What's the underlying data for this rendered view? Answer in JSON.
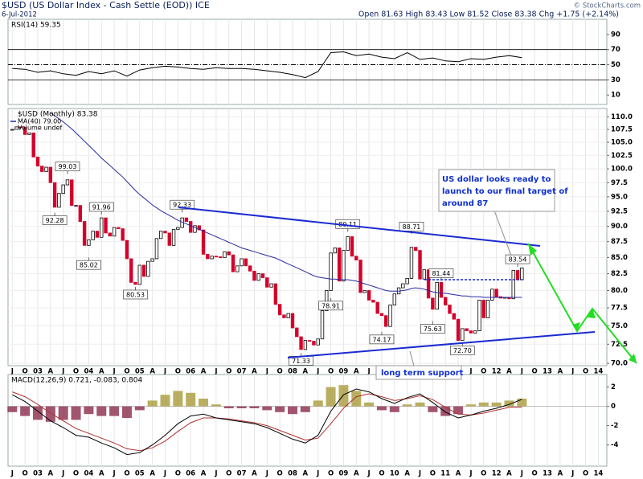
{
  "header": {
    "title": "$USD (US Dollar Index - Cash Settle (EOD)) ICE",
    "date": "6-Jul-2012",
    "quote": "Open 81.63 High 83.43 Low 81.52 Close 83.38 Chg +1.75 (+2.14%)",
    "credit": "© StockCharts.com"
  },
  "notes": {
    "target": [
      "US dollar looks ready to",
      "launch to our final target of",
      "around 87"
    ],
    "support": "long term support"
  },
  "chart_data": [
    {
      "type": "rsi",
      "legend": "RSI(14) 59.35",
      "color": "#000000",
      "xlim": [
        "2002-06",
        "2014-03"
      ],
      "ylim": [
        -2.5,
        110
      ],
      "yticks": [
        90,
        70,
        50,
        30,
        10
      ],
      "reference_lines": [
        70,
        30
      ],
      "center_line": 50,
      "x": [
        "2002-07",
        "2002-10",
        "2003-01",
        "2003-04",
        "2003-07",
        "2003-10",
        "2004-01",
        "2004-04",
        "2004-07",
        "2004-10",
        "2005-01",
        "2005-04",
        "2005-07",
        "2005-10",
        "2006-01",
        "2006-04",
        "2006-07",
        "2006-10",
        "2007-01",
        "2007-04",
        "2007-07",
        "2007-10",
        "2008-01",
        "2008-04",
        "2008-07",
        "2008-10",
        "2009-01",
        "2009-04",
        "2009-07",
        "2009-10",
        "2010-01",
        "2010-04",
        "2010-07",
        "2010-10",
        "2011-01",
        "2011-04",
        "2011-07",
        "2011-10",
        "2012-01",
        "2012-04",
        "2012-07"
      ],
      "values": [
        45,
        44,
        40,
        42,
        38,
        36,
        41,
        38,
        42,
        35,
        43,
        46,
        48,
        47,
        45,
        44,
        46,
        45,
        45,
        44,
        42,
        40,
        37,
        33,
        41,
        66,
        67,
        62,
        64,
        60,
        58,
        66,
        57,
        59,
        55,
        54,
        58,
        57,
        60,
        62,
        59.35
      ]
    },
    {
      "type": "candlestick",
      "log_scale": true,
      "grid": true,
      "xlim": [
        "2002-06",
        "2014-03"
      ],
      "ylim": [
        69.7,
        111.7
      ],
      "yticks": [
        {
          "value": 110,
          "label": "110.0"
        },
        {
          "value": 107.5,
          "label": "107.5"
        },
        {
          "value": 105,
          "label": "105.0"
        },
        {
          "value": 102.5,
          "label": "102.5"
        },
        {
          "value": 100,
          "label": "100.0"
        },
        {
          "value": 97.5,
          "label": "97.5"
        },
        {
          "value": 95,
          "label": "95.0"
        },
        {
          "value": 92.5,
          "label": "92.5"
        },
        {
          "value": 90,
          "label": "90.0"
        },
        {
          "value": 87.5,
          "label": "87.5"
        },
        {
          "value": 85,
          "label": "85.0"
        },
        {
          "value": 82.5,
          "label": "82.5"
        },
        {
          "value": 80,
          "label": "80.0"
        },
        {
          "value": 77.5,
          "label": "77.5"
        },
        {
          "value": 75,
          "label": "75.0"
        },
        {
          "value": 72.5,
          "label": "72.5"
        },
        {
          "value": 70,
          "label": "70.0"
        }
      ],
      "xticks": [
        {
          "value": "2002-07",
          "label": "J"
        },
        {
          "value": "2002-10",
          "label": "O"
        },
        {
          "value": "2003-01",
          "label": "03"
        },
        {
          "value": "2003-04",
          "label": "A"
        },
        {
          "value": "2003-07",
          "label": "J"
        },
        {
          "value": "2003-10",
          "label": "O"
        },
        {
          "value": "2004-01",
          "label": "04"
        },
        {
          "value": "2004-04",
          "label": "A"
        },
        {
          "value": "2004-07",
          "label": "J"
        },
        {
          "value": "2004-10",
          "label": "O"
        },
        {
          "value": "2005-01",
          "label": "05"
        },
        {
          "value": "2005-04",
          "label": "A"
        },
        {
          "value": "2005-07",
          "label": "J"
        },
        {
          "value": "2005-10",
          "label": "O"
        },
        {
          "value": "2006-01",
          "label": "06"
        },
        {
          "value": "2006-04",
          "label": "A"
        },
        {
          "value": "2006-07",
          "label": "J"
        },
        {
          "value": "2006-10",
          "label": "O"
        },
        {
          "value": "2007-01",
          "label": "07"
        },
        {
          "value": "2007-04",
          "label": "A"
        },
        {
          "value": "2007-07",
          "label": "J"
        },
        {
          "value": "2007-10",
          "label": "O"
        },
        {
          "value": "2008-01",
          "label": "08"
        },
        {
          "value": "2008-04",
          "label": "A"
        },
        {
          "value": "2008-07",
          "label": "J"
        },
        {
          "value": "2008-10",
          "label": "O"
        },
        {
          "value": "2009-01",
          "label": "09"
        },
        {
          "value": "2009-04",
          "label": "A"
        },
        {
          "value": "2009-07",
          "label": "J"
        },
        {
          "value": "2009-10",
          "label": "O"
        },
        {
          "value": "2010-01",
          "label": "10"
        },
        {
          "value": "2010-04",
          "label": "A"
        },
        {
          "value": "2010-07",
          "label": "J"
        },
        {
          "value": "2010-10",
          "label": "O"
        },
        {
          "value": "2011-01",
          "label": "11"
        },
        {
          "value": "2011-04",
          "label": "A"
        },
        {
          "value": "2011-07",
          "label": "J"
        },
        {
          "value": "2011-10",
          "label": "O"
        },
        {
          "value": "2012-01",
          "label": "12"
        },
        {
          "value": "2012-04",
          "label": "A"
        },
        {
          "value": "2012-07",
          "label": "J"
        },
        {
          "value": "2012-10",
          "label": "O"
        },
        {
          "value": "2013-01",
          "label": "13"
        },
        {
          "value": "2013-04",
          "label": "A"
        },
        {
          "value": "2013-07",
          "label": "J"
        },
        {
          "value": "2013-10",
          "label": "O"
        },
        {
          "value": "2014-01",
          "label": "14"
        }
      ],
      "categories": [
        "2002-07",
        "2002-08",
        "2002-09",
        "2002-10",
        "2002-11",
        "2002-12",
        "2003-01",
        "2003-02",
        "2003-03",
        "2003-04",
        "2003-05",
        "2003-06",
        "2003-07",
        "2003-08",
        "2003-09",
        "2003-10",
        "2003-11",
        "2003-12",
        "2004-01",
        "2004-02",
        "2004-03",
        "2004-04",
        "2004-05",
        "2004-06",
        "2004-07",
        "2004-08",
        "2004-09",
        "2004-10",
        "2004-11",
        "2004-12",
        "2005-01",
        "2005-02",
        "2005-03",
        "2005-04",
        "2005-05",
        "2005-06",
        "2005-07",
        "2005-08",
        "2005-09",
        "2005-10",
        "2005-11",
        "2005-12",
        "2006-01",
        "2006-02",
        "2006-03",
        "2006-04",
        "2006-05",
        "2006-06",
        "2006-07",
        "2006-08",
        "2006-09",
        "2006-10",
        "2006-11",
        "2006-12",
        "2007-01",
        "2007-02",
        "2007-03",
        "2007-04",
        "2007-05",
        "2007-06",
        "2007-07",
        "2007-08",
        "2007-09",
        "2007-10",
        "2007-11",
        "2007-12",
        "2008-01",
        "2008-02",
        "2008-03",
        "2008-04",
        "2008-05",
        "2008-06",
        "2008-07",
        "2008-08",
        "2008-09",
        "2008-10",
        "2008-11",
        "2008-12",
        "2009-01",
        "2009-02",
        "2009-03",
        "2009-04",
        "2009-05",
        "2009-06",
        "2009-07",
        "2009-08",
        "2009-09",
        "2009-10",
        "2009-11",
        "2009-12",
        "2010-01",
        "2010-02",
        "2010-03",
        "2010-04",
        "2010-05",
        "2010-06",
        "2010-07",
        "2010-08",
        "2010-09",
        "2010-10",
        "2010-11",
        "2010-12",
        "2011-01",
        "2011-02",
        "2011-03",
        "2011-04",
        "2011-05",
        "2011-06",
        "2011-07",
        "2011-08",
        "2011-09",
        "2011-10",
        "2011-11",
        "2011-12",
        "2012-01",
        "2012-02",
        "2012-03",
        "2012-04",
        "2012-05",
        "2012-06",
        "2012-07"
      ],
      "series": [
        {
          "name": "$USD (Monthly) 83.38",
          "up_color": "#000000",
          "down_color": "#d4002a",
          "values": [
            107.5,
            108,
            107.9,
            106.5,
            106.8,
            102.2,
            100.5,
            99.5,
            100.3,
            97.5,
            93.2,
            95.6,
            97.1,
            98.0,
            93.5,
            93.5,
            90.8,
            86.9,
            87.8,
            89.2,
            88.2,
            91.4,
            88.9,
            88.4,
            89.8,
            89.6,
            87.7,
            84.8,
            81.2,
            80.9,
            83.8,
            82.1,
            84.4,
            84.8,
            88.0,
            89.2,
            88.9,
            86.9,
            89.5,
            89.8,
            91.4,
            90.8,
            89.0,
            90.1,
            89.4,
            85.5,
            84.8,
            85.2,
            85.1,
            85.0,
            85.9,
            85.4,
            82.8,
            83.7,
            84.8,
            83.7,
            82.9,
            81.5,
            82.5,
            81.9,
            80.5,
            81.0,
            78.0,
            76.5,
            76.1,
            76.7,
            74.7,
            73.5,
            71.8,
            73.0,
            72.9,
            72.4,
            73.2,
            77.1,
            80.0,
            85.7,
            86.5,
            81.4,
            86.1,
            88.3,
            85.2,
            84.6,
            79.7,
            80.0,
            78.6,
            78.3,
            76.7,
            76.4,
            74.9,
            77.9,
            79.5,
            80.4,
            81.0,
            81.8,
            86.6,
            86.1,
            81.7,
            83.1,
            78.9,
            77.3,
            81.2,
            79.0,
            77.9,
            76.7,
            75.9,
            73.0,
            74.6,
            74.3,
            74.0,
            74.3,
            78.6,
            76.1,
            78.6,
            80.2,
            79.1,
            78.9,
            79.0,
            78.8,
            83.0,
            81.6,
            83.38
          ]
        },
        {
          "name": "MA(40) 79.00",
          "color": "#2a2aa0",
          "values": [
            null,
            null,
            null,
            null,
            null,
            null,
            null,
            null,
            null,
            110.8,
            110.2,
            109.6,
            109.0,
            108.3,
            107.6,
            106.8,
            106.0,
            105.2,
            104.4,
            103.6,
            102.8,
            102.0,
            101.3,
            100.6,
            99.9,
            99.2,
            98.5,
            97.7,
            96.9,
            96.1,
            95.4,
            94.8,
            94.2,
            93.6,
            93.1,
            92.6,
            92.2,
            91.8,
            91.4,
            91.0,
            90.7,
            90.4,
            90.1,
            89.8,
            89.5,
            89.2,
            88.9,
            88.6,
            88.3,
            88.0,
            87.7,
            87.4,
            87.1,
            86.8,
            86.5,
            86.3,
            86.1,
            85.9,
            85.7,
            85.5,
            85.3,
            85.1,
            84.9,
            84.6,
            84.3,
            84.0,
            83.7,
            83.4,
            83.1,
            82.8,
            82.5,
            82.2,
            82.0,
            81.9,
            81.8,
            81.7,
            81.7,
            81.6,
            81.6,
            81.6,
            81.5,
            81.4,
            81.2,
            81.0,
            80.8,
            80.6,
            80.4,
            80.2,
            80.0,
            79.9,
            79.9,
            79.9,
            80.0,
            80.1,
            80.3,
            80.4,
            80.3,
            80.2,
            80.0,
            79.8,
            79.7,
            79.6,
            79.6,
            79.5,
            79.4,
            79.3,
            79.2,
            79.2,
            79.1,
            79.1,
            79.1,
            79.0,
            79.0,
            79.0,
            79.0,
            79.0,
            79.0,
            79.0,
            79.0,
            79.0,
            79.0
          ]
        }
      ],
      "volume_label": "Volume undef",
      "annotations": [
        {
          "x": "2003-08",
          "value": 99.03
        },
        {
          "x": "2003-05",
          "value": 92.28
        },
        {
          "x": "2004-04",
          "value": 91.96
        },
        {
          "x": "2004-01",
          "value": 85.02
        },
        {
          "x": "2004-12",
          "value": 80.53
        },
        {
          "x": "2005-11",
          "value": 92.33
        },
        {
          "x": "2009-02",
          "value": 89.11
        },
        {
          "x": "2008-10",
          "value": 78.91
        },
        {
          "x": "2008-03",
          "value": 71.33
        },
        {
          "x": "2010-05",
          "value": 88.71
        },
        {
          "x": "2009-10",
          "value": 74.17
        },
        {
          "x": "2010-12",
          "value": 81.44
        },
        {
          "x": "2010-10",
          "value": 75.63
        },
        {
          "x": "2011-05",
          "value": 72.7,
          "label": "72.70"
        },
        {
          "x": "2012-06",
          "value": 83.54
        }
      ]
    },
    {
      "type": "macd",
      "legend": "MACD(12,26,9) 0.721, -0.083, 0.804",
      "xlim": [
        "2002-06",
        "2014-03"
      ],
      "ylim": [
        -6.2,
        3.3
      ],
      "yticks": [
        2,
        0,
        -2,
        -4
      ],
      "macd_color": "#000000",
      "signal_color": "#b03030",
      "hist_colors": {
        "positive": "#a89a3a",
        "negative": "#8b2a4a"
      },
      "x": [
        "2002-07",
        "2002-10",
        "2003-01",
        "2003-04",
        "2003-07",
        "2003-10",
        "2004-01",
        "2004-04",
        "2004-07",
        "2004-10",
        "2005-01",
        "2005-04",
        "2005-07",
        "2005-10",
        "2006-01",
        "2006-04",
        "2006-07",
        "2006-10",
        "2007-01",
        "2007-04",
        "2007-07",
        "2007-10",
        "2008-01",
        "2008-04",
        "2008-07",
        "2008-10",
        "2009-01",
        "2009-04",
        "2009-07",
        "2009-10",
        "2010-01",
        "2010-04",
        "2010-07",
        "2010-10",
        "2011-01",
        "2011-04",
        "2011-07",
        "2011-10",
        "2012-01",
        "2012-04",
        "2012-07"
      ],
      "macd": [
        1.2,
        0.5,
        -0.5,
        -1.5,
        -2.2,
        -3.0,
        -3.2,
        -3.8,
        -4.3,
        -5.0,
        -4.8,
        -4.0,
        -3.0,
        -1.8,
        -1.0,
        -0.8,
        -1.2,
        -1.4,
        -1.6,
        -1.8,
        -2.2,
        -2.8,
        -3.4,
        -3.8,
        -3.0,
        -0.5,
        1.2,
        1.8,
        1.5,
        0.8,
        0.3,
        0.9,
        1.3,
        0.4,
        -0.6,
        -1.2,
        -0.9,
        -0.5,
        -0.2,
        0.2,
        0.721
      ],
      "signal": [
        1.5,
        1.0,
        0.2,
        -0.7,
        -1.5,
        -2.3,
        -2.8,
        -3.3,
        -3.8,
        -4.4,
        -4.6,
        -4.3,
        -3.6,
        -2.6,
        -1.7,
        -1.2,
        -1.2,
        -1.3,
        -1.5,
        -1.7,
        -2.0,
        -2.5,
        -3.0,
        -3.5,
        -3.3,
        -1.8,
        -0.2,
        1.0,
        1.3,
        1.0,
        0.6,
        0.8,
        1.1,
        0.7,
        -0.1,
        -0.8,
        -0.9,
        -0.7,
        -0.4,
        -0.1,
        -0.083
      ],
      "histogram": [
        -0.6,
        -1.0,
        -1.4,
        -1.6,
        -1.4,
        -1.4,
        -0.8,
        -1.0,
        -1.0,
        -1.2,
        -0.4,
        0.6,
        1.2,
        1.6,
        1.4,
        0.8,
        0.2,
        -0.2,
        -0.2,
        -0.2,
        -0.4,
        -0.6,
        -0.8,
        -0.6,
        0.6,
        2.0,
        2.2,
        1.6,
        0.4,
        -0.4,
        -0.6,
        0.2,
        0.4,
        -0.6,
        -1.0,
        -0.8,
        0.2,
        0.4,
        0.4,
        0.6,
        0.804
      ]
    }
  ]
}
